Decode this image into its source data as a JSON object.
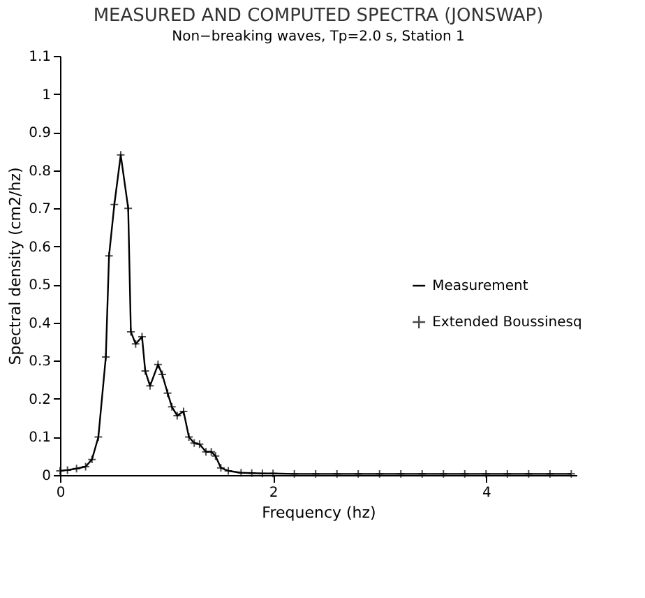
{
  "chart_data": {
    "type": "line",
    "title": "MEASURED AND COMPUTED SPECTRA (JONSWAP)",
    "subtitle": "Non−breaking waves, Tp=2.0 s, Station 1",
    "xlabel": "Frequency (hz)",
    "ylabel": "Spectral density (cm2/hz)",
    "x": [
      0,
      0.07,
      0.155,
      0.24,
      0.3,
      0.36,
      0.43,
      0.46,
      0.51,
      0.57,
      0.64,
      0.665,
      0.71,
      0.77,
      0.8,
      0.845,
      0.92,
      0.96,
      1.01,
      1.05,
      1.1,
      1.16,
      1.21,
      1.26,
      1.31,
      1.37,
      1.42,
      1.46,
      1.51,
      1.58,
      1.7,
      1.8,
      1.9,
      2.0,
      2.2,
      2.4,
      2.6,
      2.8,
      3.0,
      3.2,
      3.4,
      3.6,
      3.8,
      4.0,
      4.2,
      4.4,
      4.6,
      4.8
    ],
    "series": [
      {
        "name": "Measurement",
        "type": "line",
        "marker": "none",
        "color": "#000000",
        "values": [
          0.011,
          0.013,
          0.017,
          0.022,
          0.041,
          0.1,
          0.31,
          0.575,
          0.71,
          0.84,
          0.7,
          0.376,
          0.344,
          0.363,
          0.273,
          0.234,
          0.29,
          0.264,
          0.215,
          0.179,
          0.156,
          0.167,
          0.1,
          0.084,
          0.081,
          0.061,
          0.061,
          0.05,
          0.019,
          0.011,
          0.006,
          0.005,
          0.004,
          0.004,
          0.003,
          0.003,
          0.003,
          0.003,
          0.003,
          0.003,
          0.003,
          0.003,
          0.003,
          0.003,
          0.003,
          0.003,
          0.003,
          0.003
        ]
      },
      {
        "name": "Extended Boussinesq",
        "type": "scatter",
        "marker": "cross",
        "color": "#000000",
        "values": [
          0.011,
          0.013,
          0.017,
          0.022,
          0.041,
          0.1,
          0.31,
          0.575,
          0.71,
          0.84,
          0.7,
          0.376,
          0.344,
          0.363,
          0.273,
          0.234,
          0.29,
          0.264,
          0.215,
          0.179,
          0.156,
          0.167,
          0.1,
          0.084,
          0.081,
          0.061,
          0.061,
          0.05,
          0.019,
          0.011,
          0.006,
          0.005,
          0.004,
          0.004,
          0.003,
          0.003,
          0.003,
          0.003,
          0.003,
          0.003,
          0.003,
          0.003,
          0.003,
          0.003,
          0.003,
          0.003,
          0.003,
          0.003
        ]
      }
    ],
    "xlim": [
      0,
      4.85
    ],
    "xticks": [
      0,
      2,
      4
    ],
    "ylim": [
      0,
      1.1
    ],
    "yticks": [
      0,
      0.1,
      0.2,
      0.3,
      0.4,
      0.5,
      0.6,
      0.7,
      0.8,
      0.9,
      1,
      1.1
    ],
    "grid": false,
    "legend": "right"
  }
}
